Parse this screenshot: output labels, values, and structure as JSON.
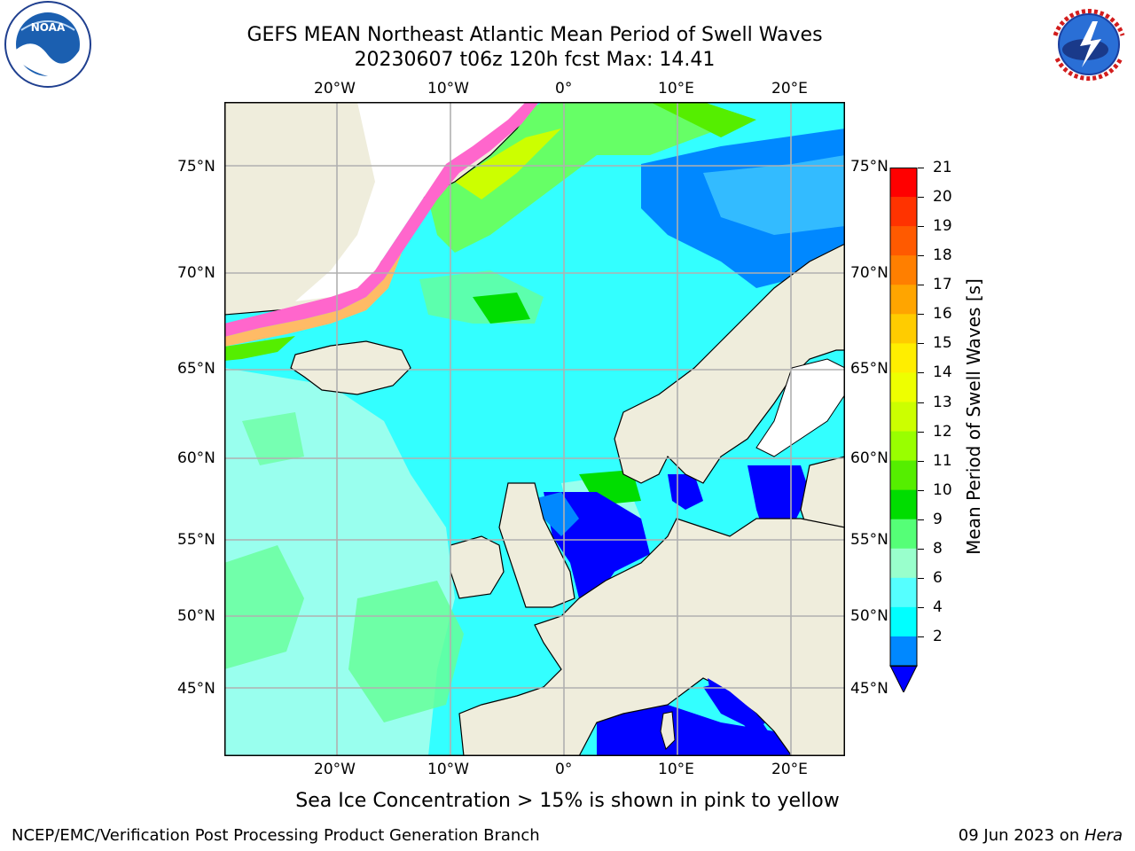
{
  "title": {
    "line1": "GEFS MEAN Northeast Atlantic Mean Period of Swell Waves",
    "line2": "20230607 t06z 120h fcst   Max: 14.41"
  },
  "logos": {
    "noaa": {
      "center_text": "NOAA",
      "ring_text": "NATIONAL OCEANIC AND ATMOSPHERIC ADMINISTRATION · U.S. DEPARTMENT OF COMMERCE"
    },
    "nws": {
      "ring_text": "NATIONAL WEATHER SERVICE"
    }
  },
  "map": {
    "lon_labels": [
      "20°W",
      "10°W",
      "0°",
      "10°E",
      "20°E"
    ],
    "lat_labels": [
      "75°N",
      "70°N",
      "65°N",
      "60°N",
      "55°N",
      "50°N",
      "45°N"
    ],
    "colors": {
      "ocean_base": "#33ffff",
      "land": "#efeddc",
      "ice_free": "#ffffff",
      "grid": "#b0b0b0"
    }
  },
  "colorbar": {
    "title": "Mean Period of Swell Waves [s]",
    "tick_labels": [
      "21",
      "20",
      "19",
      "18",
      "17",
      "16",
      "15",
      "14",
      "13",
      "12",
      "11",
      "10",
      "9",
      "8",
      "6",
      "4",
      "2"
    ],
    "bin_colors_top_to_bottom": [
      "#ff0000",
      "#ff3300",
      "#ff5a00",
      "#ff7f00",
      "#ffa500",
      "#ffcc00",
      "#ffee00",
      "#eeff00",
      "#ccff00",
      "#99ff00",
      "#55ee00",
      "#00dd00",
      "#55ff77",
      "#99ffcc",
      "#55ffff",
      "#00ffff",
      "#0088ff"
    ],
    "extend_color": "#0000ff"
  },
  "note": "Sea Ice Concentration > 15% is shown in pink to yellow",
  "footer": {
    "left": "NCEP/EMC/Verification Post Processing Product Generation Branch",
    "right_date": "09 Jun 2023 on ",
    "right_host": "Hera"
  }
}
